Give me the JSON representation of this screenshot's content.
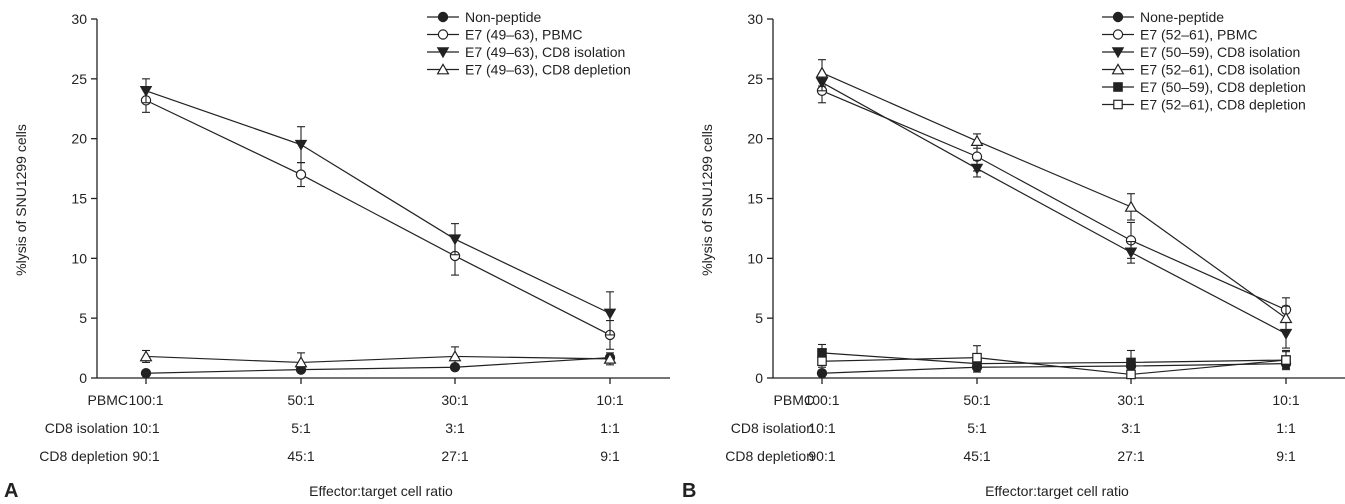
{
  "chart_data": [
    {
      "type": "line",
      "panel_label": "A",
      "ylabel": "%lysis of SNU1299 cells",
      "xlabel": "Effector:target cell ratio",
      "ylim": [
        0,
        30
      ],
      "y_ticks": [
        "0",
        "5",
        "10",
        "15",
        "20",
        "25",
        "30"
      ],
      "ratio_rows": [
        {
          "label": "PBMC",
          "values": [
            "100:1",
            "50:1",
            "30:1",
            "10:1"
          ]
        },
        {
          "label": "CD8 isolation",
          "values": [
            "10:1",
            "5:1",
            "3:1",
            "1:1"
          ]
        },
        {
          "label": "CD8 depletion",
          "values": [
            "90:1",
            "45:1",
            "27:1",
            "9:1"
          ]
        }
      ],
      "legend_position": "top-right",
      "series": [
        {
          "name": "Non-peptide",
          "marker": "circle-filled",
          "values": [
            0.4,
            0.7,
            0.9,
            1.7
          ],
          "errors": [
            0.2,
            0.2,
            0.2,
            0.2
          ]
        },
        {
          "name": "E7 (49–63), PBMC",
          "marker": "circle-open",
          "values": [
            23.2,
            17.0,
            10.2,
            3.6
          ],
          "errors": [
            1.0,
            1.0,
            1.6,
            1.2
          ]
        },
        {
          "name": "E7 (49–63), CD8 isolation",
          "marker": "triangle-down-filled",
          "values": [
            24.0,
            19.5,
            11.6,
            5.4
          ],
          "errors": [
            1.0,
            1.5,
            1.3,
            1.8
          ]
        },
        {
          "name": "E7 (49–63), CD8 depletion",
          "marker": "triangle-up-open",
          "values": [
            1.8,
            1.3,
            1.8,
            1.6
          ],
          "errors": [
            0.5,
            0.8,
            0.8,
            0.5
          ]
        }
      ]
    },
    {
      "type": "line",
      "panel_label": "B",
      "ylabel": "%lysis of SNU1299 cells",
      "xlabel": "Effector:target cell ratio",
      "ylim": [
        0,
        30
      ],
      "y_ticks": [
        "0",
        "5",
        "10",
        "15",
        "20",
        "25",
        "30"
      ],
      "ratio_rows": [
        {
          "label": "PBMC",
          "values": [
            "100:1",
            "50:1",
            "30:1",
            "10:1"
          ]
        },
        {
          "label": "CD8 isolation",
          "values": [
            "10:1",
            "5:1",
            "3:1",
            "1:1"
          ]
        },
        {
          "label": "CD8 depletion",
          "values": [
            "90:1",
            "45:1",
            "27:1",
            "9:1"
          ]
        }
      ],
      "legend_position": "top-right",
      "series": [
        {
          "name": "None-peptide",
          "marker": "circle-filled",
          "values": [
            0.4,
            0.9,
            1.0,
            1.2
          ],
          "errors": [
            0.2,
            0.4,
            0.4,
            0.3
          ]
        },
        {
          "name": "E7 (52–61), PBMC",
          "marker": "circle-open",
          "values": [
            24.0,
            18.5,
            11.5,
            5.7
          ],
          "errors": [
            1.0,
            1.2,
            1.5,
            1.0
          ]
        },
        {
          "name": "E7 (50–59), CD8 isolation",
          "marker": "triangle-down-filled",
          "values": [
            24.7,
            17.5,
            10.5,
            3.7
          ],
          "errors": [
            0.7,
            0.7,
            0.9,
            1.2
          ]
        },
        {
          "name": "E7 (52–61), CD8 isolation",
          "marker": "triangle-up-open",
          "values": [
            25.5,
            19.8,
            14.3,
            5.0
          ],
          "errors": [
            1.1,
            0.6,
            1.1,
            1.0
          ]
        },
        {
          "name": "E7 (50–59), CD8 depletion",
          "marker": "square-filled",
          "values": [
            2.1,
            1.2,
            1.3,
            1.5
          ],
          "errors": [
            0.7,
            0.7,
            1.0,
            0.8
          ]
        },
        {
          "name": "E7 (52–61), CD8 depletion",
          "marker": "square-open",
          "values": [
            1.4,
            1.7,
            0.3,
            1.5
          ],
          "errors": [
            0.5,
            1.0,
            0.3,
            0.7
          ]
        }
      ]
    }
  ]
}
